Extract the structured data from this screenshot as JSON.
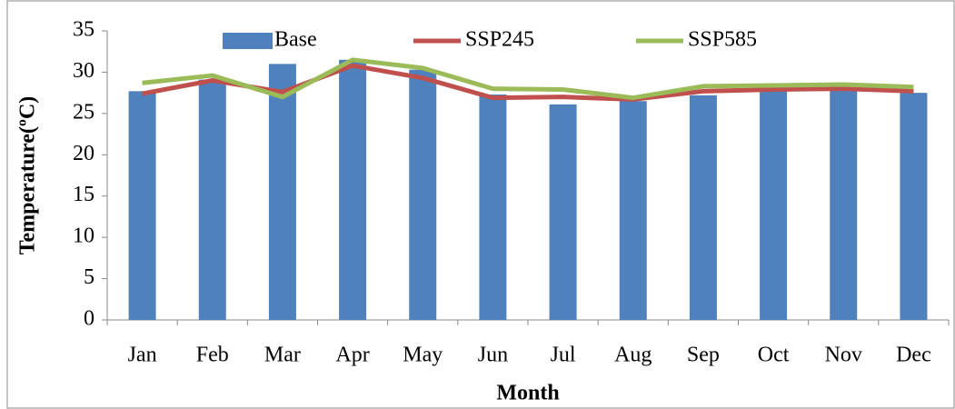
{
  "chart_data": {
    "type": "bar",
    "y_axis_label": "Temperature(ºC)",
    "x_axis_label": "Month",
    "categories": [
      "Jan",
      "Feb",
      "Mar",
      "Apr",
      "May",
      "Jun",
      "Jul",
      "Aug",
      "Sep",
      "Oct",
      "Nov",
      "Dec"
    ],
    "series": [
      {
        "name": "Base",
        "type": "bar",
        "color": "#4f81bd",
        "values": [
          27.7,
          29.1,
          31.0,
          31.5,
          30.3,
          27.3,
          26.1,
          26.5,
          27.2,
          27.9,
          28.0,
          27.5
        ]
      },
      {
        "name": "SSP245",
        "type": "line",
        "color": "#c0504d",
        "values": [
          27.4,
          29.0,
          27.6,
          30.8,
          29.3,
          26.9,
          27.0,
          26.7,
          27.7,
          27.9,
          28.0,
          27.7
        ]
      },
      {
        "name": "SSP585",
        "type": "line",
        "color": "#9bbb59",
        "values": [
          28.7,
          29.6,
          27.0,
          31.5,
          30.5,
          28.0,
          27.9,
          26.9,
          28.3,
          28.4,
          28.5,
          28.2
        ]
      }
    ],
    "ylim": [
      0,
      35
    ],
    "yticks": [
      0,
      5,
      10,
      15,
      20,
      25,
      30,
      35
    ],
    "legend": "top"
  }
}
